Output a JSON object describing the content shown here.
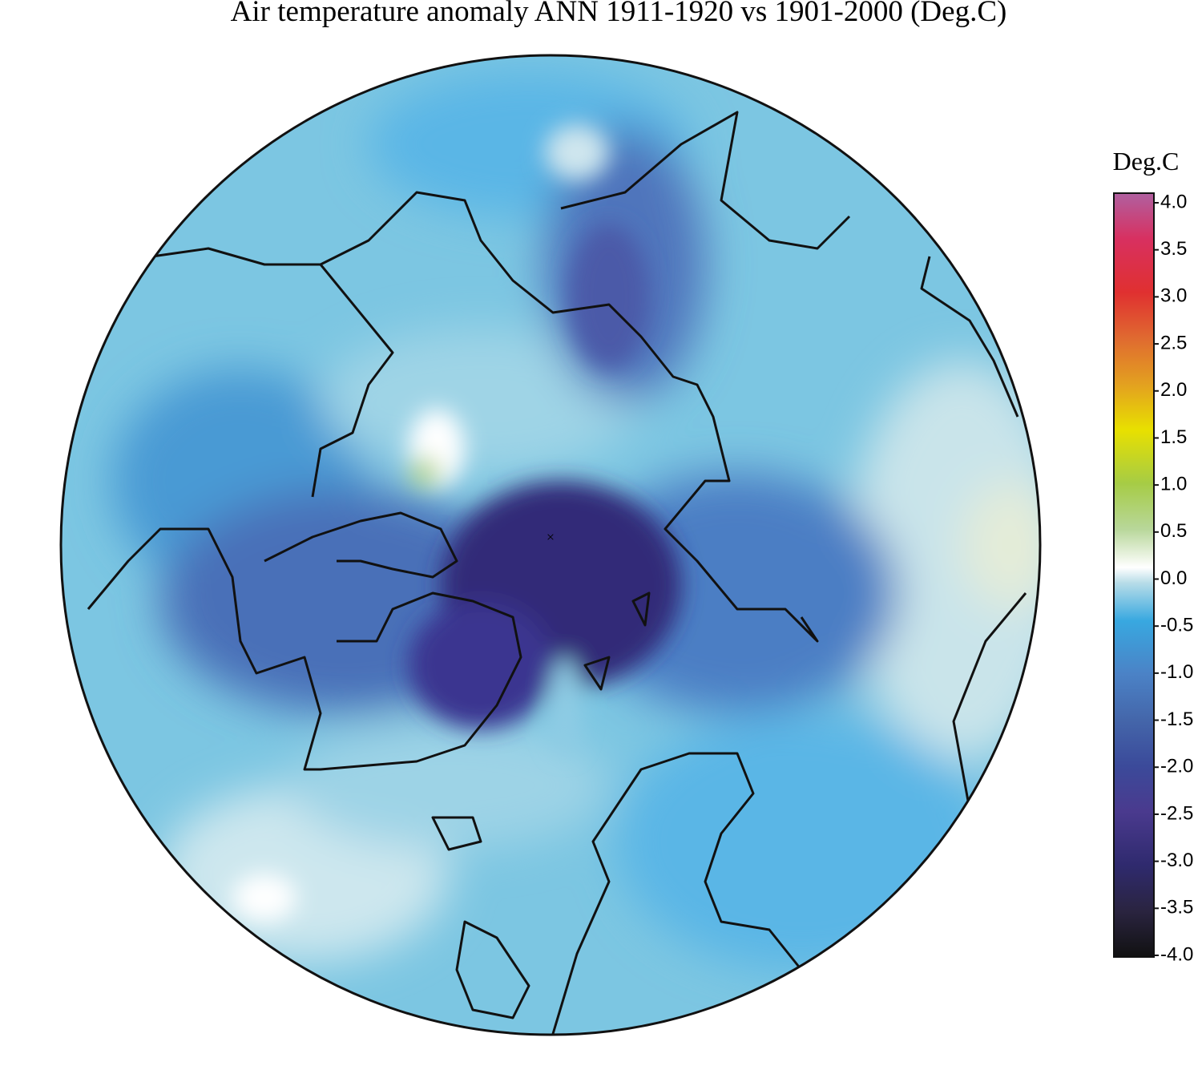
{
  "title": "Air temperature anomaly ANN 1911-1920 vs 1901-2000 (Deg.C)",
  "colorbar": {
    "label": "Deg.C",
    "lim": [
      -4,
      4
    ],
    "ticks": [
      {
        "value": 4,
        "label": "4.0"
      },
      3.5,
      {
        "value": 3,
        "label": "3.0"
      },
      2.5,
      {
        "value": 2,
        "label": "2.0"
      },
      1.5,
      {
        "value": 1,
        "label": "1.0"
      },
      0.5,
      {
        "value": 0,
        "label": "0.0"
      },
      -0.5,
      {
        "value": -1,
        "label": "-1.0"
      },
      -1.5,
      {
        "value": -2,
        "label": "-2.0"
      },
      -2.5,
      {
        "value": -3,
        "label": "-3.0"
      },
      -3.5,
      {
        "value": -4,
        "label": "-4.0"
      }
    ]
  }
}
